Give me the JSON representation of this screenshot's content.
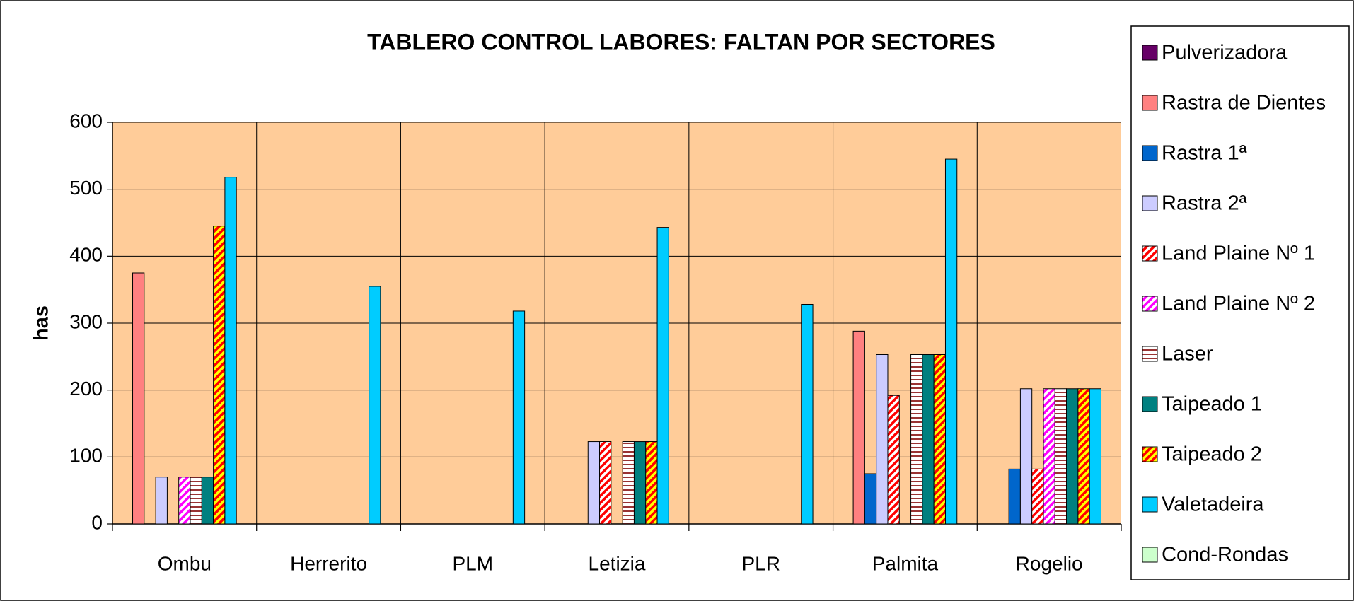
{
  "chart_data": {
    "type": "bar",
    "title": "TABLERO CONTROL LABORES: FALTAN POR SECTORES",
    "y_label": "has",
    "categories": [
      "Ombu",
      "Herrerito",
      "PLM",
      "Letizia",
      "PLR",
      "Palmita",
      "Rogelio"
    ],
    "series": [
      {
        "name": "Pulverizadora",
        "color": "#660066",
        "values": [
          0,
          0,
          0,
          0,
          0,
          0,
          0
        ]
      },
      {
        "name": "Rastra de Dientes",
        "color": "#ff8080",
        "values": [
          375,
          0,
          0,
          0,
          0,
          288,
          0
        ]
      },
      {
        "name": "Rastra 1ª",
        "color": "#0066cc",
        "values": [
          0,
          0,
          0,
          0,
          0,
          75,
          82
        ]
      },
      {
        "name": "Rastra 2ª",
        "color": "#ccccff",
        "values": [
          70,
          0,
          0,
          123,
          0,
          253,
          202
        ]
      },
      {
        "name": "Land Plaine Nº 1",
        "color": "#ff0000",
        "pattern": "diagonal",
        "pattern_background": "#ffffff",
        "values": [
          0,
          0,
          0,
          123,
          0,
          192,
          82
        ]
      },
      {
        "name": "Land Plaine Nº 2",
        "color": "#ff00ff",
        "pattern": "diagonal",
        "pattern_background": "#ffffff",
        "values": [
          70,
          0,
          0,
          0,
          0,
          0,
          202
        ]
      },
      {
        "name": "Laser",
        "color": "#993333",
        "pattern": "horizontal",
        "pattern_background": "#ffffff",
        "values": [
          70,
          0,
          0,
          123,
          0,
          253,
          202
        ]
      },
      {
        "name": "Taipeado 1",
        "color": "#008080",
        "values": [
          70,
          0,
          0,
          123,
          0,
          253,
          202
        ]
      },
      {
        "name": "Taipeado 2",
        "color": "#ff0000",
        "pattern": "diagonal",
        "pattern_background": "#ffff00",
        "values": [
          445,
          0,
          0,
          123,
          0,
          253,
          202
        ]
      },
      {
        "name": "Valetadeira",
        "color": "#00ccff",
        "values": [
          518,
          355,
          318,
          443,
          328,
          545,
          202
        ]
      },
      {
        "name": "Cond-Rondas",
        "color": "#ccffcc",
        "values": [
          0,
          0,
          0,
          0,
          0,
          0,
          0
        ]
      }
    ],
    "ylim": [
      0,
      600
    ],
    "yticks": [
      0,
      100,
      200,
      300,
      400,
      500,
      600
    ],
    "grid": true,
    "plot_background": "#ffcc99",
    "legend": "right"
  }
}
